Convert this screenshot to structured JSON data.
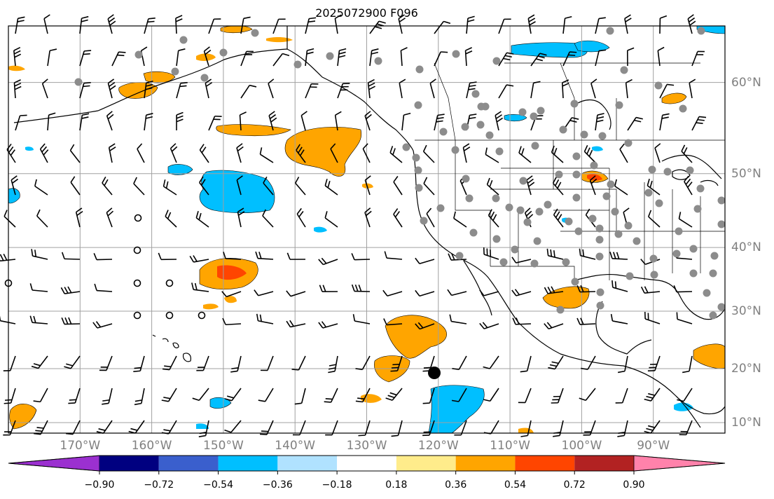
{
  "title": "2025072900 F096",
  "map": {
    "lon_range": [
      -180,
      -80
    ],
    "lat_range": [
      8,
      65
    ],
    "lon_labels": [
      "170°W",
      "160°W",
      "150°W",
      "140°W",
      "130°W",
      "120°W",
      "110°W",
      "100°W",
      "90°W"
    ],
    "lat_labels": [
      "60°N",
      "50°N",
      "40°N",
      "30°N",
      "20°N",
      "10°N"
    ],
    "grid_color": "#a0a0a0",
    "coastline_color": "#000000",
    "storm_marker_color": "#000000",
    "station_dot_color": "#8c8c8c"
  },
  "colorbar": {
    "tick_labels": [
      "−0.90",
      "−0.72",
      "−0.54",
      "−0.36",
      "−0.18",
      "0.18",
      "0.36",
      "0.54",
      "0.72",
      "0.90"
    ],
    "colors": [
      "#9b30d0",
      "#000080",
      "#3a5fcd",
      "#00bfff",
      "#b0e2ff",
      "#ffffff",
      "#ffec8b",
      "#ffa500",
      "#ff4500",
      "#b22222",
      "#ff82ab"
    ]
  }
}
